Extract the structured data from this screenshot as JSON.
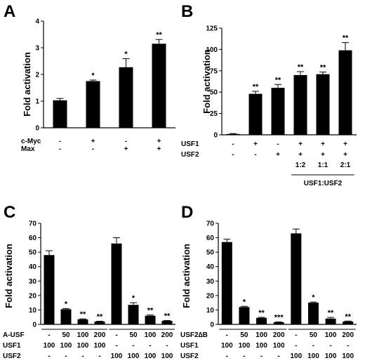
{
  "chart_data": [
    {
      "panel": "A",
      "type": "bar",
      "ylabel": "Fold activation",
      "ylim": [
        0,
        4
      ],
      "yticks": [
        0,
        1,
        2,
        3,
        4
      ],
      "values": [
        1.03,
        1.75,
        2.27,
        3.15
      ],
      "errors": [
        0.07,
        0.04,
        0.32,
        0.16
      ],
      "significance": [
        "",
        "*",
        "*",
        "**"
      ],
      "rows": [
        {
          "label": "c-Myc",
          "cells": [
            "-",
            "+",
            "-",
            "+"
          ]
        },
        {
          "label": "Max",
          "cells": [
            "-",
            "-",
            "+",
            "+"
          ]
        }
      ]
    },
    {
      "panel": "B",
      "type": "bar",
      "ylabel": "Fold activation",
      "ylim": [
        0,
        125
      ],
      "yticks": [
        0,
        25,
        50,
        75,
        100,
        125
      ],
      "values": [
        1,
        48,
        55,
        70,
        71,
        99
      ],
      "errors": [
        0.5,
        3,
        4,
        4,
        2.5,
        9
      ],
      "significance": [
        "",
        "**",
        "**",
        "**",
        "**",
        "**"
      ],
      "rows": [
        {
          "label": "USF1",
          "cells": [
            "-",
            "+",
            "-",
            "+",
            "+",
            "+"
          ]
        },
        {
          "label": "USF2",
          "cells": [
            "-",
            "-",
            "+",
            "+",
            "+",
            "+"
          ]
        },
        {
          "label": "",
          "cells": [
            "",
            "",
            "",
            "1:2",
            "1:1",
            "2:1"
          ]
        }
      ],
      "bracket_label": "USF1:USF2"
    },
    {
      "panel": "C",
      "type": "bar",
      "ylabel": "Fold activation",
      "ylim": [
        0,
        70
      ],
      "yticks": [
        0,
        10,
        20,
        30,
        40,
        50,
        60,
        70
      ],
      "values": [
        48,
        10.5,
        3.5,
        2,
        56,
        13.5,
        6,
        2.5
      ],
      "errors": [
        3,
        0.5,
        0.3,
        0.2,
        4,
        1.5,
        0.5,
        0.2
      ],
      "significance": [
        "",
        "*",
        "**",
        "**",
        "",
        "*",
        "**",
        "**"
      ],
      "groups": [
        [
          0,
          3
        ],
        [
          4,
          7
        ]
      ],
      "rows": [
        {
          "label": "A-USF",
          "cells": [
            "-",
            "50",
            "100",
            "200",
            "-",
            "50",
            "100",
            "200"
          ]
        },
        {
          "label": "USF1",
          "cells": [
            "100",
            "100",
            "100",
            "100",
            "-",
            "-",
            "-",
            "-"
          ]
        },
        {
          "label": "USF2",
          "cells": [
            "-",
            "-",
            "-",
            "-",
            "100",
            "100",
            "100",
            "100"
          ]
        }
      ]
    },
    {
      "panel": "D",
      "type": "bar",
      "ylabel": "Fold activation",
      "ylim": [
        0,
        70
      ],
      "yticks": [
        0,
        10,
        20,
        30,
        40,
        50,
        60,
        70
      ],
      "values": [
        57,
        12,
        4.5,
        1.5,
        63,
        15,
        4,
        2
      ],
      "errors": [
        2,
        0.5,
        0.4,
        0.2,
        3,
        0.5,
        0.8,
        0.3
      ],
      "significance": [
        "",
        "*",
        "**",
        "***",
        "",
        "*",
        "**",
        "**"
      ],
      "groups": [
        [
          0,
          3
        ],
        [
          4,
          7
        ]
      ],
      "rows": [
        {
          "label": "USF2∆B",
          "cells": [
            "-",
            "50",
            "100",
            "200",
            "-",
            "50",
            "100",
            "200"
          ]
        },
        {
          "label": "USF1",
          "cells": [
            "100",
            "100",
            "100",
            "100",
            "-",
            "-",
            "-",
            "-"
          ]
        },
        {
          "label": "USF2",
          "cells": [
            "-",
            "-",
            "-",
            "-",
            "100",
            "100",
            "100",
            "100"
          ]
        }
      ]
    }
  ],
  "style": {
    "bar_color": "#000000",
    "background": "#ffffff"
  }
}
